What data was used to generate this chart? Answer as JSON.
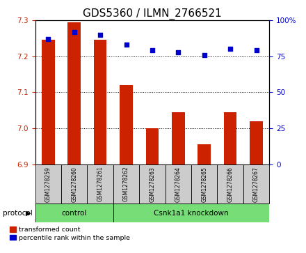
{
  "title": "GDS5360 / ILMN_2766521",
  "samples": [
    "GSM1278259",
    "GSM1278260",
    "GSM1278261",
    "GSM1278262",
    "GSM1278263",
    "GSM1278264",
    "GSM1278265",
    "GSM1278266",
    "GSM1278267"
  ],
  "red_values": [
    7.245,
    7.295,
    7.245,
    7.12,
    7.0,
    7.045,
    6.955,
    7.045,
    7.02
  ],
  "blue_values": [
    87,
    92,
    90,
    83,
    79,
    78,
    76,
    80,
    79
  ],
  "ylim_left": [
    6.9,
    7.3
  ],
  "ylim_right": [
    0,
    100
  ],
  "yticks_left": [
    6.9,
    7.0,
    7.1,
    7.2,
    7.3
  ],
  "yticks_right": [
    0,
    25,
    50,
    75,
    100
  ],
  "bar_color": "#cc2200",
  "dot_color": "#0000cc",
  "bg_color": "#ffffff",
  "control_samples": 3,
  "control_label": "control",
  "knockdown_label": "Csnk1a1 knockdown",
  "protocol_label": "protocol",
  "legend_red": "transformed count",
  "legend_blue": "percentile rank within the sample",
  "bar_width": 0.5,
  "title_fontsize": 11,
  "tick_fontsize": 7.5,
  "sample_fontsize": 5.5,
  "annotation_box_color": "#cccccc",
  "green_color": "#77dd77"
}
